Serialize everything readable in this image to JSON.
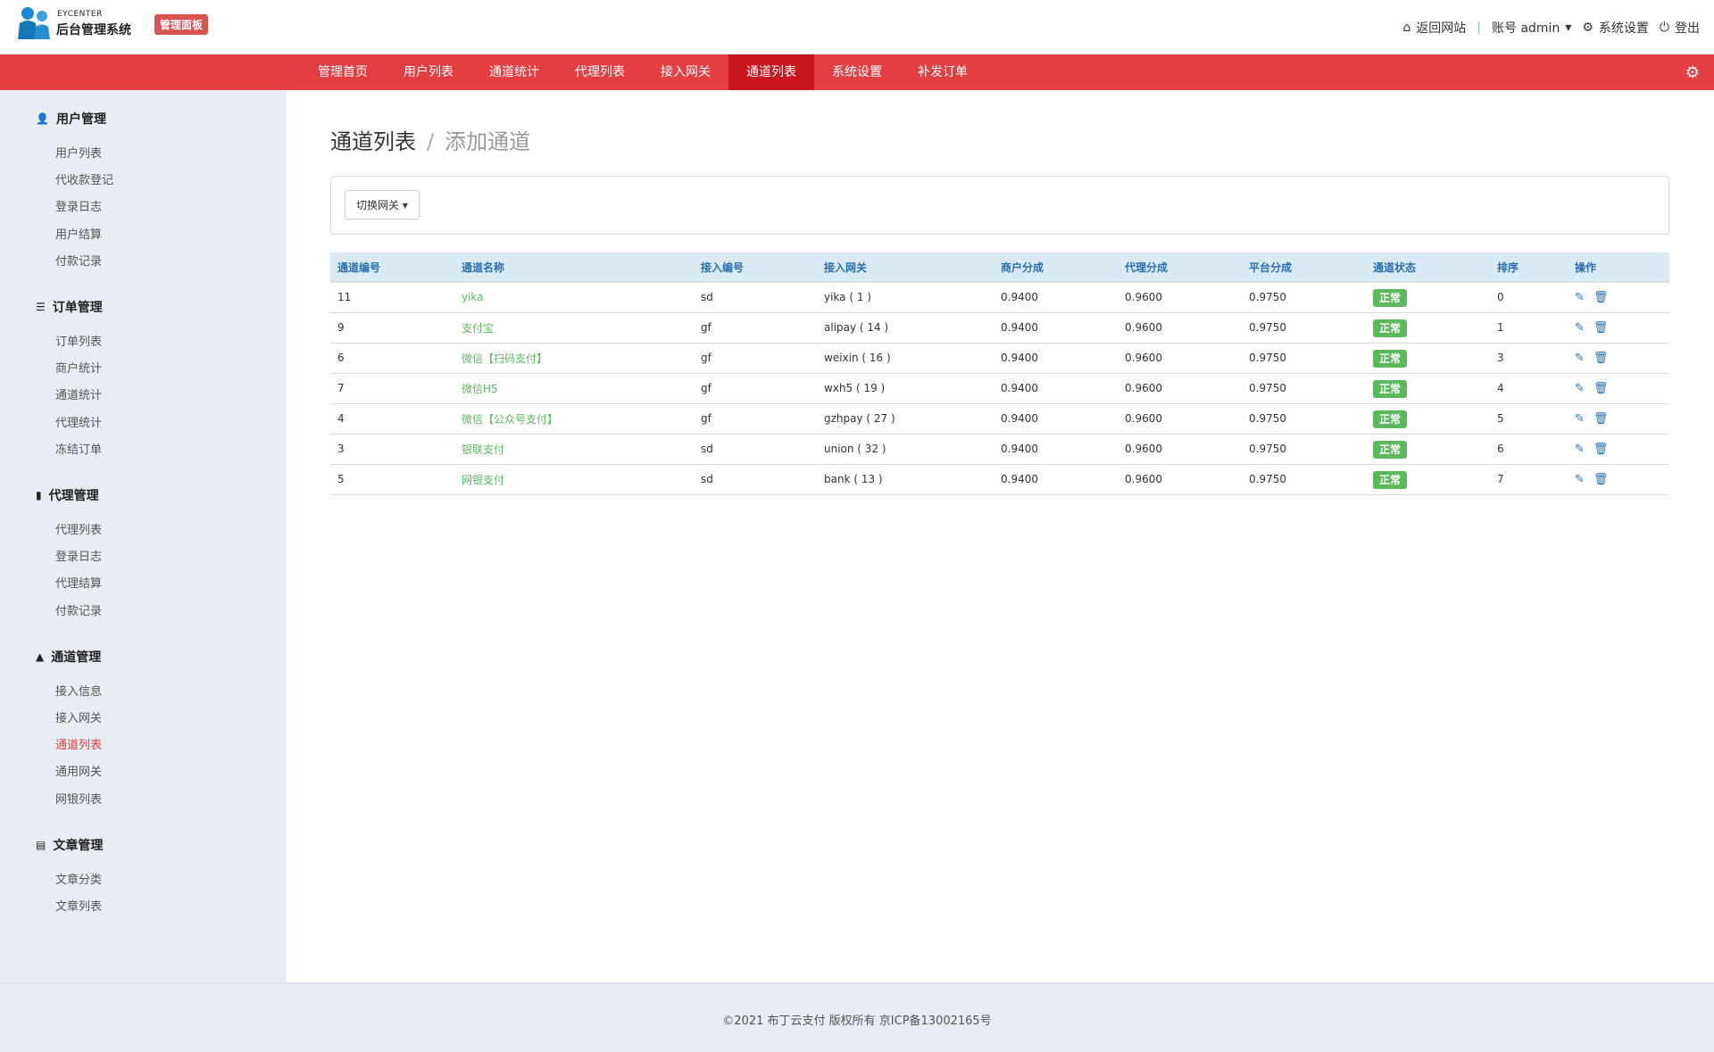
{
  "header": {
    "brand_en": "EYCENTER",
    "brand_cn": "后台管理系统",
    "panel_badge": "管理面板",
    "back_site": "返回网站",
    "account": "账号 admin",
    "settings": "系统设置",
    "logout": "登出"
  },
  "nav": {
    "items": [
      "管理首页",
      "用户列表",
      "通道统计",
      "代理列表",
      "接入网关",
      "通道列表",
      "系统设置",
      "补发订单"
    ],
    "active": "通道列表"
  },
  "sidebar": {
    "groups": [
      {
        "title": "用户管理",
        "icon": "user-icon",
        "items": [
          "用户列表",
          "代收款登记",
          "登录日志",
          "用户结算",
          "付款记录"
        ]
      },
      {
        "title": "订单管理",
        "icon": "list-icon",
        "items": [
          "订单列表",
          "商户统计",
          "通道统计",
          "代理统计",
          "冻结订单"
        ]
      },
      {
        "title": "代理管理",
        "icon": "file-icon",
        "items": [
          "代理列表",
          "登录日志",
          "代理结算",
          "付款记录"
        ]
      },
      {
        "title": "通道管理",
        "icon": "road-icon",
        "items": [
          "接入信息",
          "接入网关",
          "通道列表",
          "通用网关",
          "网银列表"
        ]
      },
      {
        "title": "文章管理",
        "icon": "article-icon",
        "items": [
          "文章分类",
          "文章列表"
        ]
      }
    ],
    "active": "通道列表"
  },
  "main": {
    "title": "通道列表",
    "subtitle": "添加通道",
    "switch_gateway": "切换网关",
    "columns": [
      "通道编号",
      "通道名称",
      "接入编号",
      "接入网关",
      "商户分成",
      "代理分成",
      "平台分成",
      "通道状态",
      "排序",
      "操作"
    ],
    "rows": [
      [
        "11",
        "yika",
        "sd",
        "yika ( 1 )",
        "0.9400",
        "0.9600",
        "0.9750",
        "正常",
        "0"
      ],
      [
        "9",
        "支付宝",
        "gf",
        "alipay ( 14 )",
        "0.9400",
        "0.9600",
        "0.9750",
        "正常",
        "1"
      ],
      [
        "6",
        "微信【扫码支付】",
        "gf",
        "weixin ( 16 )",
        "0.9400",
        "0.9600",
        "0.9750",
        "正常",
        "3"
      ],
      [
        "7",
        "微信H5",
        "gf",
        "wxh5 ( 19 )",
        "0.9400",
        "0.9600",
        "0.9750",
        "正常",
        "4"
      ],
      [
        "4",
        "微信【公众号支付】",
        "gf",
        "gzhpay ( 27 )",
        "0.9400",
        "0.9600",
        "0.9750",
        "正常",
        "5"
      ],
      [
        "3",
        "银联支付",
        "sd",
        "union ( 32 )",
        "0.9400",
        "0.9600",
        "0.9750",
        "正常",
        "6"
      ],
      [
        "5",
        "网银支付",
        "sd",
        "bank ( 13 )",
        "0.9400",
        "0.9600",
        "0.9750",
        "正常",
        "7"
      ]
    ]
  },
  "footer": {
    "text": "©2021  布丁云支付 版权所有  京ICP备13002165号"
  },
  "colors": {
    "nav": "#e33e42",
    "nav_active": "#c9151e",
    "status_ok": "#5cb85c",
    "table_header": "#d9eaf5"
  }
}
